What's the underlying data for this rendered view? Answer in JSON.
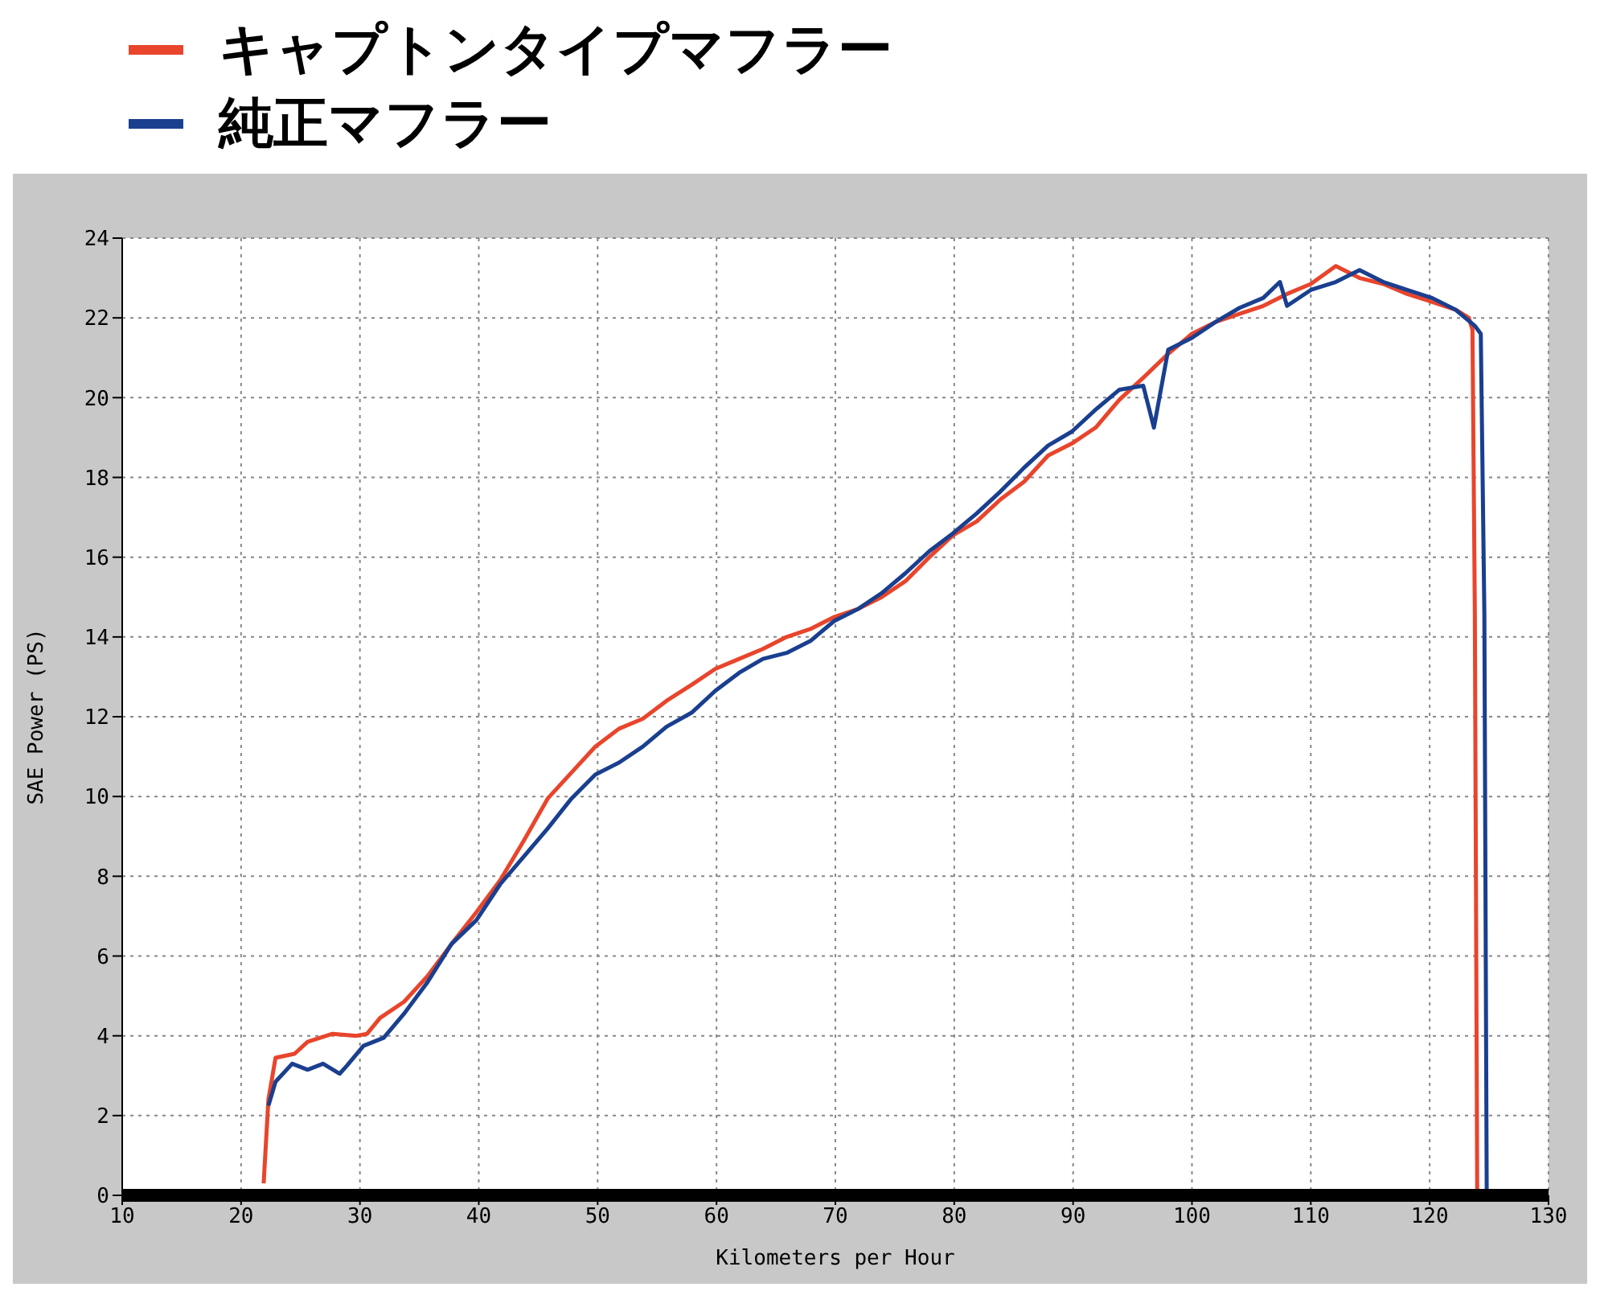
{
  "chart_data": {
    "type": "line",
    "xlabel": "Kilometers per Hour",
    "ylabel": "SAE Power (PS)",
    "xlim": [
      10,
      130
    ],
    "xticks": [
      10,
      20,
      30,
      40,
      50,
      60,
      70,
      80,
      90,
      100,
      110,
      120,
      130
    ],
    "ylim": [
      0,
      24
    ],
    "yticks": [
      0,
      2,
      4,
      6,
      8,
      10,
      12,
      14,
      16,
      18,
      20,
      22,
      24
    ],
    "grid": true,
    "legend": "top left",
    "marker": "none",
    "line_style": "solid",
    "series": [
      {
        "name": "キャプトンタイプマフラー",
        "color": "#e8452c",
        "x": [
          21.9,
          22.3,
          22.9,
          23.7,
          24.5,
          25.6,
          27.7,
          29.7,
          30.6,
          31.7,
          33.7,
          35.7,
          37.7,
          39.8,
          41.8,
          43.8,
          45.8,
          47.8,
          49.8,
          51.8,
          53.8,
          55.8,
          57.9,
          59.9,
          61.9,
          63.9,
          65.9,
          67.9,
          69.9,
          71.9,
          73.9,
          75.9,
          77.9,
          79.9,
          81.9,
          83.9,
          85.9,
          87.9,
          89.9,
          91.9,
          93.9,
          95.9,
          98,
          100,
          102,
          104,
          106,
          108,
          110,
          112.1,
          114.1,
          116.1,
          118.1,
          120.2,
          122.2,
          123.3,
          123.6,
          123.8,
          124
        ],
        "values": [
          0.3,
          2.4,
          3.45,
          3.5,
          3.55,
          3.85,
          4.05,
          4,
          4.05,
          4.45,
          4.85,
          5.5,
          6.3,
          7.1,
          7.9,
          8.9,
          9.95,
          10.6,
          11.25,
          11.7,
          11.95,
          12.4,
          12.8,
          13.2,
          13.45,
          13.7,
          14,
          14.2,
          14.5,
          14.7,
          15,
          15.4,
          16,
          16.55,
          16.9,
          17.45,
          17.9,
          18.55,
          18.85,
          19.25,
          19.95,
          20.5,
          21.1,
          21.6,
          21.9,
          22.1,
          22.3,
          22.6,
          22.85,
          23.3,
          23,
          22.85,
          22.6,
          22.4,
          22.2,
          22,
          21.7,
          14.6,
          0
        ]
      },
      {
        "name": "純正マフラー",
        "color": "#1a3f8f",
        "x": [
          22.3,
          22.9,
          24.3,
          25.6,
          26.9,
          28.3,
          28.9,
          30.3,
          32,
          33.7,
          35.7,
          37.7,
          39.8,
          41.8,
          43.8,
          45.8,
          47.8,
          49.8,
          51.8,
          53.8,
          55.8,
          57.9,
          59.9,
          61.9,
          63.9,
          65.9,
          67.9,
          69.9,
          71.9,
          73.9,
          75.9,
          77.9,
          79.9,
          81.9,
          83.9,
          85.9,
          87.9,
          89.9,
          91.9,
          93.9,
          95.9,
          96.8,
          98,
          100,
          102,
          104,
          106,
          107.4,
          108,
          110,
          112.1,
          114.1,
          116.1,
          118.1,
          120.2,
          122.2,
          123.8,
          124.3,
          124.6,
          124.8
        ],
        "values": [
          2.25,
          2.85,
          3.3,
          3.15,
          3.3,
          3.05,
          3.25,
          3.75,
          3.95,
          4.55,
          5.35,
          6.3,
          6.9,
          7.8,
          8.5,
          9.2,
          9.95,
          10.55,
          10.85,
          11.25,
          11.75,
          12.1,
          12.65,
          13.1,
          13.45,
          13.6,
          13.9,
          14.4,
          14.7,
          15.1,
          15.6,
          16.15,
          16.6,
          17.1,
          17.65,
          18.25,
          18.8,
          19.15,
          19.7,
          20.2,
          20.3,
          19.25,
          21.2,
          21.5,
          21.9,
          22.25,
          22.5,
          22.9,
          22.3,
          22.7,
          22.9,
          23.2,
          22.9,
          22.7,
          22.5,
          22.2,
          21.8,
          21.6,
          14.6,
          0
        ]
      }
    ]
  }
}
